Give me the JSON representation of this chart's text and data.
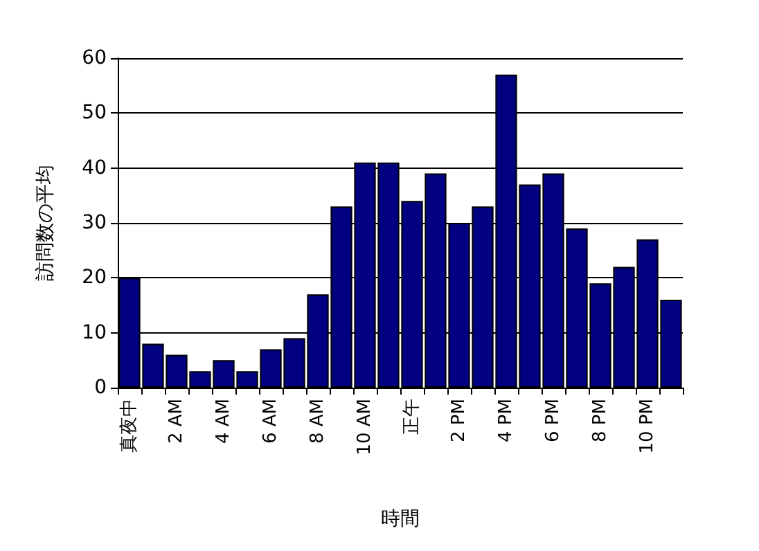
{
  "chart_data": {
    "type": "bar",
    "xlabel": "時間",
    "ylabel": "訪問数の平均",
    "categories": [
      "真夜中",
      null,
      "2 AM",
      null,
      "4 AM",
      null,
      "6 AM",
      null,
      "8 AM",
      null,
      "10 AM",
      null,
      "正午",
      null,
      "2 PM",
      null,
      "4 PM",
      null,
      "6 PM",
      null,
      "8 PM",
      null,
      "10 PM",
      null
    ],
    "values": [
      20,
      8,
      6,
      3,
      5,
      3,
      7,
      9,
      17,
      33,
      41,
      41,
      34,
      39,
      30,
      33,
      57,
      37,
      39,
      29,
      19,
      22,
      27,
      16
    ],
    "color": "#000080",
    "ylim": [
      0,
      60
    ],
    "yticks": [
      0,
      10,
      20,
      30,
      40,
      50,
      60
    ],
    "grid": "y"
  }
}
